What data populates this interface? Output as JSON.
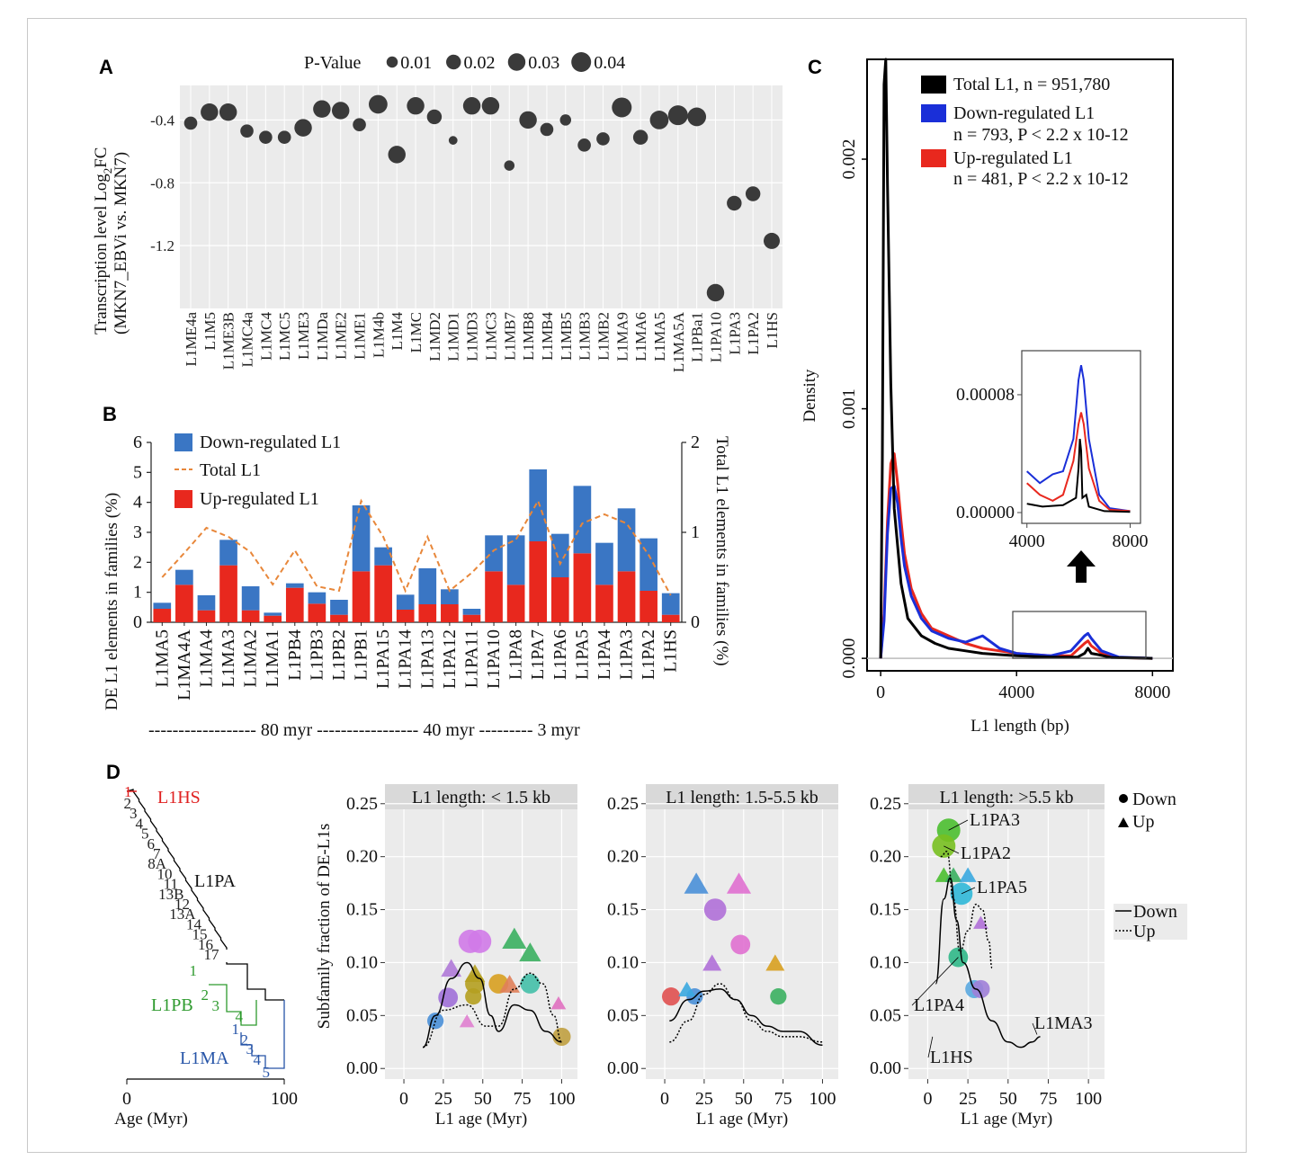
{
  "panelA": {
    "label": "A",
    "ylabel_line1": "Transcription level Log",
    "ylabel_sub": "2",
    "ylabel_line1_end": "FC",
    "ylabel_line2": "(MKN7_EBVi vs. MKN7)",
    "legend_title": "P-Value",
    "legend_items": [
      "0.01",
      "0.02",
      "0.03",
      "0.04"
    ],
    "legend_values": [
      0.01,
      0.02,
      0.03,
      0.04
    ],
    "yticks": [
      "-0.4",
      "-0.8",
      "-1.2"
    ],
    "ytick_values": [
      -0.4,
      -0.8,
      -1.2
    ],
    "ylim": [
      -1.6,
      -0.18
    ]
  },
  "panelB": {
    "label": "B",
    "ylabel_left": "DE L1 elements in families (%)",
    "ylabel_right": "Total L1 elements in families (%)",
    "yticks_left": [
      "0",
      "1",
      "2",
      "3",
      "4",
      "5",
      "6"
    ],
    "yticks_right": [
      "0",
      "1",
      "2"
    ],
    "legend": [
      "Down-regulated L1",
      "Total L1",
      "Up-regulated L1"
    ],
    "timeline": "------------------ 80 myr ----------------- 40 myr --------- 3 myr"
  },
  "panelC": {
    "label": "C",
    "ylabel": "Density",
    "xlabel": "L1 length (bp)",
    "xticks": [
      "0",
      "4000",
      "8000"
    ],
    "yticks": [
      "0.000",
      "0.001",
      "0.002"
    ],
    "legend": [
      {
        "line1": "Total L1, n = 951,780",
        "line2": ""
      },
      {
        "line1": "Down-regulated L1",
        "line2": "n = 793, P < 2.2 x 10-12"
      },
      {
        "line1": "Up-regulated L1",
        "line2": "n = 481, P < 2.2 x 10-12"
      }
    ],
    "inset_yticks": [
      "0.00000",
      "0.00008"
    ],
    "inset_xticks": [
      "4000",
      "8000"
    ]
  },
  "panelD": {
    "label": "D",
    "tree_labels": {
      "hs": "L1HS",
      "pa": "L1PA",
      "pb": "L1PB",
      "ma": "L1MA"
    },
    "tree_numbers_pa": [
      "2",
      "3",
      "4",
      "5",
      "6",
      "7",
      "8A",
      "10",
      "11",
      "13B",
      "12",
      "13A",
      "14",
      "15",
      "16",
      "17"
    ],
    "tree_numbers_pb": [
      "1",
      "2",
      "3",
      "4"
    ],
    "tree_numbers_ma": [
      "1",
      "2",
      "3",
      "4",
      "5"
    ],
    "tree_xticks": [
      "0",
      "100"
    ],
    "tree_xlabel": "Age (Myr)",
    "ylabel": "Subfamily fraction of DE-L1s",
    "xlabel": "L1 age (Myr)",
    "yticks": [
      "0.00",
      "0.05",
      "0.10",
      "0.15",
      "0.20",
      "0.25"
    ],
    "xticks": [
      "0",
      "25",
      "50",
      "75",
      "100"
    ],
    "facets": [
      "L1 length: < 1.5 kb",
      "L1 length: 1.5-5.5 kb",
      "L1 length: >5.5 kb"
    ],
    "shape_legend": [
      "Down",
      "Up"
    ],
    "line_legend": [
      "Down",
      "Up"
    ],
    "annotations": [
      "L1PA3",
      "L1PA2",
      "L1PA5",
      "L1PA4",
      "L1HS",
      "L1MA3"
    ]
  },
  "colors": {
    "down": "#3a76c4",
    "up": "#e8281e",
    "total_dash": "#e8873a",
    "black": "#000000",
    "gray_panel": "#ebebeb",
    "tree_red": "#e02020",
    "tree_green": "#2e9a2e",
    "tree_blue": "#2755a8"
  },
  "chart_data": [
    {
      "type": "scatter",
      "panel": "A",
      "categories": [
        "L1ME4a",
        "L1M5",
        "L1ME3B",
        "L1MC4a",
        "L1MC4",
        "L1MC5",
        "L1ME3",
        "L1MDa",
        "L1ME2",
        "L1ME1",
        "L1M4b",
        "L1M4",
        "L1MC",
        "L1MD2",
        "L1MD1",
        "L1MD3",
        "L1MC3",
        "L1MB7",
        "L1MB8",
        "L1MB4",
        "L1MB5",
        "L1MB3",
        "L1MB2",
        "L1MA9",
        "L1MA6",
        "L1MA5",
        "L1MA5A",
        "L1PBa1",
        "L1PA10",
        "L1PA3",
        "L1PA2",
        "L1HS"
      ],
      "values": [
        -0.42,
        -0.35,
        -0.35,
        -0.47,
        -0.51,
        -0.51,
        -0.45,
        -0.33,
        -0.34,
        -0.43,
        -0.3,
        -0.62,
        -0.31,
        -0.38,
        -0.53,
        -0.31,
        -0.31,
        -0.69,
        -0.4,
        -0.46,
        -0.4,
        -0.56,
        -0.52,
        -0.32,
        -0.51,
        -0.4,
        -0.37,
        -0.38,
        -1.5,
        -0.93,
        -0.87,
        -1.17
      ],
      "pvalue": [
        0.015,
        0.03,
        0.03,
        0.015,
        0.015,
        0.015,
        0.03,
        0.03,
        0.03,
        0.015,
        0.035,
        0.03,
        0.03,
        0.02,
        0.005,
        0.03,
        0.03,
        0.008,
        0.03,
        0.015,
        0.01,
        0.015,
        0.015,
        0.04,
        0.02,
        0.035,
        0.04,
        0.035,
        0.03,
        0.02,
        0.02,
        0.025
      ],
      "ylim": [
        -1.6,
        -0.18
      ]
    },
    {
      "type": "bar",
      "panel": "B",
      "categories": [
        "L1MA5",
        "L1MA4A",
        "L1MA4",
        "L1MA3",
        "L1MA2",
        "L1MA1",
        "L1PB4",
        "L1PB3",
        "L1PB2",
        "L1PB1",
        "L1PA15",
        "L1PA14",
        "L1PA13",
        "L1PA12",
        "L1PA11",
        "L1PA10",
        "L1PA8",
        "L1PA7",
        "L1PA6",
        "L1PA5",
        "L1PA4",
        "L1PA3",
        "L1PA2",
        "L1HS"
      ],
      "series": [
        {
          "name": "Up-regulated L1",
          "values": [
            0.45,
            1.25,
            0.4,
            1.9,
            0.4,
            0.22,
            1.15,
            0.62,
            0.25,
            1.7,
            1.9,
            0.42,
            0.6,
            0.6,
            0.25,
            1.7,
            1.25,
            2.7,
            1.5,
            2.3,
            1.25,
            1.7,
            1.05,
            0.25
          ]
        },
        {
          "name": "Down-regulated L1",
          "values": [
            0.2,
            0.5,
            0.5,
            0.85,
            0.8,
            0.1,
            0.15,
            0.38,
            0.5,
            2.2,
            0.6,
            0.5,
            1.2,
            0.5,
            0.2,
            1.2,
            1.65,
            2.4,
            1.45,
            2.25,
            1.4,
            2.1,
            1.75,
            0.72
          ]
        },
        {
          "name": "Total L1",
          "axis": "right",
          "values": [
            0.5,
            0.77,
            1.05,
            0.95,
            0.78,
            0.42,
            0.8,
            0.4,
            0.35,
            1.35,
            0.95,
            0.35,
            0.95,
            0.35,
            0.55,
            0.8,
            0.92,
            1.35,
            0.65,
            1.1,
            1.2,
            1.1,
            0.75,
            0.3
          ]
        }
      ],
      "ylim": [
        0,
        6
      ],
      "ylim_right": [
        0,
        2
      ]
    },
    {
      "type": "line",
      "panel": "C",
      "series": [
        {
          "name": "Total L1",
          "x": [
            0,
            50,
            100,
            150,
            200,
            300,
            400,
            600,
            800,
            1200,
            1600,
            2000,
            2500,
            3000,
            3500,
            4000,
            5000,
            5800,
            6000,
            6100,
            6200,
            6400,
            6800,
            8000
          ],
          "y": [
            0,
            0.0008,
            0.0023,
            0.0024,
            0.0019,
            0.0011,
            0.0006,
            0.0003,
            0.00016,
            9e-05,
            6e-05,
            4e-05,
            3e-05,
            2e-05,
            1.5e-05,
            1e-05,
            5e-06,
            5e-06,
            2e-05,
            4e-05,
            2e-05,
            1.5e-05,
            3e-06,
            0
          ]
        },
        {
          "name": "Down-regulated L1",
          "x": [
            0,
            100,
            200,
            300,
            400,
            500,
            600,
            700,
            900,
            1200,
            1500,
            2000,
            2500,
            3000,
            3500,
            4000,
            5000,
            5600,
            6000,
            6100,
            6200,
            6500,
            7000,
            8000
          ],
          "y": [
            0,
            0.00015,
            0.0005,
            0.00068,
            0.00069,
            0.00062,
            0.00048,
            0.00037,
            0.00025,
            0.00016,
            0.00011,
            8e-05,
            6.5e-05,
            9e-05,
            4e-05,
            2e-05,
            1e-05,
            3e-05,
            9e-05,
            0.0001,
            8e-05,
            3e-05,
            5e-06,
            0
          ]
        },
        {
          "name": "Up-regulated L1",
          "x": [
            0,
            100,
            200,
            300,
            400,
            500,
            600,
            700,
            900,
            1200,
            1500,
            2000,
            2500,
            3000,
            3500,
            4000,
            5000,
            5600,
            6000,
            6100,
            6200,
            6500,
            7000,
            8000
          ],
          "y": [
            0,
            0.00018,
            0.00055,
            0.00078,
            0.00082,
            0.0007,
            0.00055,
            0.00042,
            0.00028,
            0.00018,
            0.00012,
            9e-05,
            6e-05,
            4e-05,
            3e-05,
            2e-05,
            1e-05,
            1e-05,
            6e-05,
            7e-05,
            5e-05,
            2e-05,
            3e-06,
            0
          ]
        }
      ],
      "xlim": [
        -400,
        8600
      ],
      "ylim": [
        -5e-05,
        0.0024
      ]
    },
    {
      "type": "scatter",
      "panel": "D1",
      "points": [
        {
          "x": 42,
          "y": 0.12,
          "shape": "circle",
          "color": "#d07ae8",
          "size": 0.04
        },
        {
          "x": 48,
          "y": 0.12,
          "shape": "circle",
          "color": "#d07ae8",
          "size": 0.04
        },
        {
          "x": 70,
          "y": 0.123,
          "shape": "triangle",
          "color": "#3bb060",
          "size": 0.04
        },
        {
          "x": 80,
          "y": 0.11,
          "shape": "triangle",
          "color": "#3bb060",
          "size": 0.03
        },
        {
          "x": 30,
          "y": 0.095,
          "shape": "triangle",
          "color": "#b07ad8",
          "size": 0.025
        },
        {
          "x": 45,
          "y": 0.09,
          "shape": "triangle",
          "color": "#b5a020",
          "size": 0.025
        },
        {
          "x": 45,
          "y": 0.08,
          "shape": "circle",
          "color": "#b5a020",
          "size": 0.025
        },
        {
          "x": 60,
          "y": 0.08,
          "shape": "circle",
          "color": "#d8a020",
          "size": 0.025
        },
        {
          "x": 67,
          "y": 0.08,
          "shape": "triangle",
          "color": "#e0805a",
          "size": 0.025
        },
        {
          "x": 80,
          "y": 0.08,
          "shape": "circle",
          "color": "#44c0a8",
          "size": 0.025
        },
        {
          "x": 28,
          "y": 0.067,
          "shape": "circle",
          "color": "#a070d8",
          "size": 0.025
        },
        {
          "x": 44,
          "y": 0.068,
          "shape": "circle",
          "color": "#b5a020",
          "size": 0.015
        },
        {
          "x": 98,
          "y": 0.062,
          "shape": "triangle",
          "color": "#e070c0",
          "size": 0.01
        },
        {
          "x": 20,
          "y": 0.045,
          "shape": "circle",
          "color": "#4a90d8",
          "size": 0.015
        },
        {
          "x": 40,
          "y": 0.045,
          "shape": "triangle",
          "color": "#e080d0",
          "size": 0.01
        },
        {
          "x": 100,
          "y": 0.03,
          "shape": "circle",
          "color": "#c0a040",
          "size": 0.02
        }
      ],
      "curves": [
        {
          "name": "Down",
          "x": [
            12,
            20,
            30,
            40,
            48,
            55,
            60,
            70,
            80,
            90,
            100
          ],
          "y": [
            0.02,
            0.05,
            0.085,
            0.1,
            0.085,
            0.05,
            0.035,
            0.06,
            0.055,
            0.035,
            0.025
          ]
        },
        {
          "name": "Up",
          "x": [
            12,
            25,
            40,
            52,
            60,
            70,
            80,
            88,
            95,
            100
          ],
          "y": [
            0.02,
            0.055,
            0.06,
            0.04,
            0.04,
            0.075,
            0.09,
            0.08,
            0.05,
            0.025
          ]
        }
      ],
      "xlim": [
        -12,
        110
      ],
      "ylim": [
        -0.01,
        0.26
      ]
    },
    {
      "type": "scatter",
      "panel": "D2",
      "points": [
        {
          "x": 20,
          "y": 0.175,
          "shape": "triangle",
          "color": "#4a90d8",
          "size": 0.04
        },
        {
          "x": 47,
          "y": 0.175,
          "shape": "triangle",
          "color": "#e070d0",
          "size": 0.04
        },
        {
          "x": 32,
          "y": 0.15,
          "shape": "circle",
          "color": "#b070d8",
          "size": 0.035
        },
        {
          "x": 48,
          "y": 0.117,
          "shape": "circle",
          "color": "#e070d0",
          "size": 0.025
        },
        {
          "x": 30,
          "y": 0.1,
          "shape": "triangle",
          "color": "#b070d8",
          "size": 0.02
        },
        {
          "x": 70,
          "y": 0.1,
          "shape": "triangle",
          "color": "#d8a020",
          "size": 0.02
        },
        {
          "x": 4,
          "y": 0.068,
          "shape": "circle",
          "color": "#e05050",
          "size": 0.02
        },
        {
          "x": 19,
          "y": 0.068,
          "shape": "circle",
          "color": "#4a90d8",
          "size": 0.015
        },
        {
          "x": 72,
          "y": 0.068,
          "shape": "circle",
          "color": "#3bb060",
          "size": 0.015
        },
        {
          "x": 14,
          "y": 0.075,
          "shape": "triangle",
          "color": "#3aa8e0",
          "size": 0.015
        }
      ],
      "curves": [
        {
          "name": "Down",
          "x": [
            3,
            15,
            25,
            35,
            45,
            55,
            65,
            75,
            85,
            100
          ],
          "y": [
            0.045,
            0.065,
            0.073,
            0.075,
            0.065,
            0.05,
            0.04,
            0.035,
            0.035,
            0.022
          ]
        },
        {
          "name": "Up",
          "x": [
            3,
            15,
            25,
            35,
            45,
            55,
            65,
            75,
            85,
            100
          ],
          "y": [
            0.025,
            0.045,
            0.07,
            0.08,
            0.065,
            0.045,
            0.035,
            0.03,
            0.03,
            0.025
          ]
        }
      ],
      "xlim": [
        -12,
        110
      ],
      "ylim": [
        -0.01,
        0.26
      ]
    },
    {
      "type": "scatter",
      "panel": "D3",
      "points": [
        {
          "x": 13,
          "y": 0.225,
          "shape": "circle",
          "color": "#4bbf30",
          "size": 0.04
        },
        {
          "x": 10,
          "y": 0.21,
          "shape": "circle",
          "color": "#78c020",
          "size": 0.04
        },
        {
          "x": 21,
          "y": 0.165,
          "shape": "circle",
          "color": "#30b8d8",
          "size": 0.035
        },
        {
          "x": 19,
          "y": 0.105,
          "shape": "circle",
          "color": "#30b888",
          "size": 0.025
        },
        {
          "x": 29,
          "y": 0.075,
          "shape": "circle",
          "color": "#5aa8e0",
          "size": 0.02
        },
        {
          "x": 33,
          "y": 0.075,
          "shape": "circle",
          "color": "#a080d8",
          "size": 0.02
        },
        {
          "x": 10,
          "y": 0.183,
          "shape": "triangle",
          "color": "#4bbf30",
          "size": 0.015
        },
        {
          "x": 16,
          "y": 0.183,
          "shape": "triangle",
          "color": "#3bb060",
          "size": 0.015
        },
        {
          "x": 25,
          "y": 0.183,
          "shape": "triangle",
          "color": "#3aa8e0",
          "size": 0.015
        },
        {
          "x": 33,
          "y": 0.138,
          "shape": "triangle",
          "color": "#b070d8",
          "size": 0.01
        }
      ],
      "curves": [
        {
          "name": "Down",
          "x": [
            5,
            10,
            14,
            18,
            22,
            30,
            40,
            50,
            58,
            65,
            70
          ],
          "y": [
            0.08,
            0.16,
            0.18,
            0.14,
            0.1,
            0.075,
            0.045,
            0.025,
            0.02,
            0.025,
            0.03
          ]
        },
        {
          "name": "Up",
          "x": [
            8,
            12,
            16,
            20,
            25,
            30,
            34,
            38,
            40
          ],
          "y": [
            0.2,
            0.205,
            0.16,
            0.11,
            0.13,
            0.155,
            0.15,
            0.12,
            0.095
          ]
        }
      ],
      "xlim": [
        -12,
        110
      ],
      "ylim": [
        -0.01,
        0.26
      ]
    }
  ]
}
